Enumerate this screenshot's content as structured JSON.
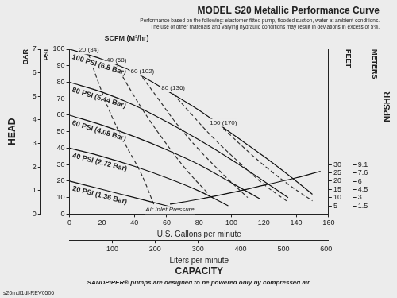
{
  "chart_data": {
    "type": "line",
    "title": "MODEL S20 Metallic Performance Curve",
    "subtitle": [
      "Performance based on the following: elastomer fitted pump, flooded suction, water at ambient conditions.",
      "The use of other materials and varying hydraulic conditions may result in deviations in excess of 5%."
    ],
    "x_label": "U.S. Gallons per minute",
    "xlim": [
      0,
      160
    ],
    "xticks": [
      0,
      20,
      40,
      60,
      80,
      100,
      120,
      140,
      160
    ],
    "x2_label": "Liters per minute",
    "x2lim": [
      0,
      605.6
    ],
    "x2ticks": [
      100,
      200,
      300,
      400,
      500,
      600
    ],
    "capacity_label": "CAPACITY",
    "y_title": "HEAD",
    "y_label": "PSI",
    "ylim": [
      0,
      100
    ],
    "yticks": [
      0,
      10,
      20,
      30,
      40,
      50,
      60,
      70,
      80,
      90,
      100
    ],
    "y_bar_label": "BAR",
    "y_bar_lim": [
      0,
      7
    ],
    "y_bar_ticks": [
      0,
      1,
      2,
      3,
      4,
      5,
      6,
      7
    ],
    "y2_title": "NPSHR",
    "y2_label": "FEET",
    "y2lim": [
      0,
      100
    ],
    "y2ticks": [
      5,
      10,
      15,
      20,
      25,
      30
    ],
    "y3_label": "METERS",
    "y3lim": [
      0,
      30.48
    ],
    "y3ticks": [
      1.5,
      3,
      4.5,
      6,
      7.6,
      9.1
    ],
    "grid": false,
    "scfm_label": "SCFM (M³/hr)",
    "series": [
      {
        "name": "100 PSI (6.8 Bar)",
        "color": "#111111",
        "line_style": "solid",
        "x": [
          0,
          20,
          40,
          60,
          80,
          100,
          120,
          140,
          150
        ],
        "values": [
          100,
          94,
          86,
          75,
          63,
          49,
          35,
          20,
          12
        ]
      },
      {
        "name": "80 PSI (5.44 Bar)",
        "color": "#111111",
        "line_style": "solid",
        "x": [
          0,
          20,
          40,
          60,
          80,
          100,
          120,
          135
        ],
        "values": [
          80,
          74,
          66,
          56,
          45,
          33,
          20,
          10
        ]
      },
      {
        "name": "60 PSI (4.08 Bar)",
        "color": "#111111",
        "line_style": "solid",
        "x": [
          0,
          20,
          40,
          60,
          80,
          100,
          118
        ],
        "values": [
          60,
          54,
          47,
          39,
          30,
          19,
          9
        ]
      },
      {
        "name": "40 PSI (2.72 Bar)",
        "color": "#111111",
        "line_style": "solid",
        "x": [
          0,
          20,
          40,
          60,
          80,
          98
        ],
        "values": [
          40,
          35,
          29,
          22,
          14,
          5
        ]
      },
      {
        "name": "20 PSI (1.36 Bar)",
        "color": "#111111",
        "line_style": "solid",
        "x": [
          0,
          20,
          40,
          60,
          75
        ],
        "values": [
          20,
          15,
          10,
          5,
          1
        ]
      },
      {
        "name": "20 (34)",
        "color": "#333333",
        "line_style": "dashed",
        "x": [
          12,
          17,
          24,
          33,
          44,
          52
        ],
        "values": [
          96,
          82,
          64,
          45,
          25,
          6
        ]
      },
      {
        "name": "40 (68)",
        "color": "#333333",
        "line_style": "dashed",
        "x": [
          29,
          36,
          46,
          58,
          72,
          86
        ],
        "values": [
          90,
          78,
          62,
          45,
          27,
          12
        ]
      },
      {
        "name": "60 (102)",
        "color": "#333333",
        "line_style": "dashed",
        "x": [
          45,
          54,
          66,
          80,
          96,
          110
        ],
        "values": [
          83,
          71,
          55,
          39,
          23,
          10
        ]
      },
      {
        "name": "80 (136)",
        "color": "#333333",
        "line_style": "dashed",
        "x": [
          64,
          74,
          88,
          104,
          120,
          134
        ],
        "values": [
          73,
          62,
          47,
          32,
          18,
          8
        ]
      },
      {
        "name": "100 (170)",
        "color": "#333333",
        "line_style": "dashed",
        "x": [
          95,
          108,
          122,
          138,
          150
        ],
        "values": [
          52,
          40,
          28,
          16,
          8
        ]
      },
      {
        "color": "#111111",
        "line_style": "solid",
        "axis": "y2",
        "x": [
          62,
          80,
          100,
          120,
          140,
          155
        ],
        "values": [
          6,
          9,
          13,
          17.5,
          22,
          26
        ]
      }
    ],
    "annotations": [
      {
        "text": "Air Inlet Pressure",
        "x": 62,
        "y": 2.5
      }
    ],
    "footer": "SANDPIPER® pumps are designed to be powered only by compressed air.",
    "document_code": "s20mdl1dl-REV0506"
  }
}
